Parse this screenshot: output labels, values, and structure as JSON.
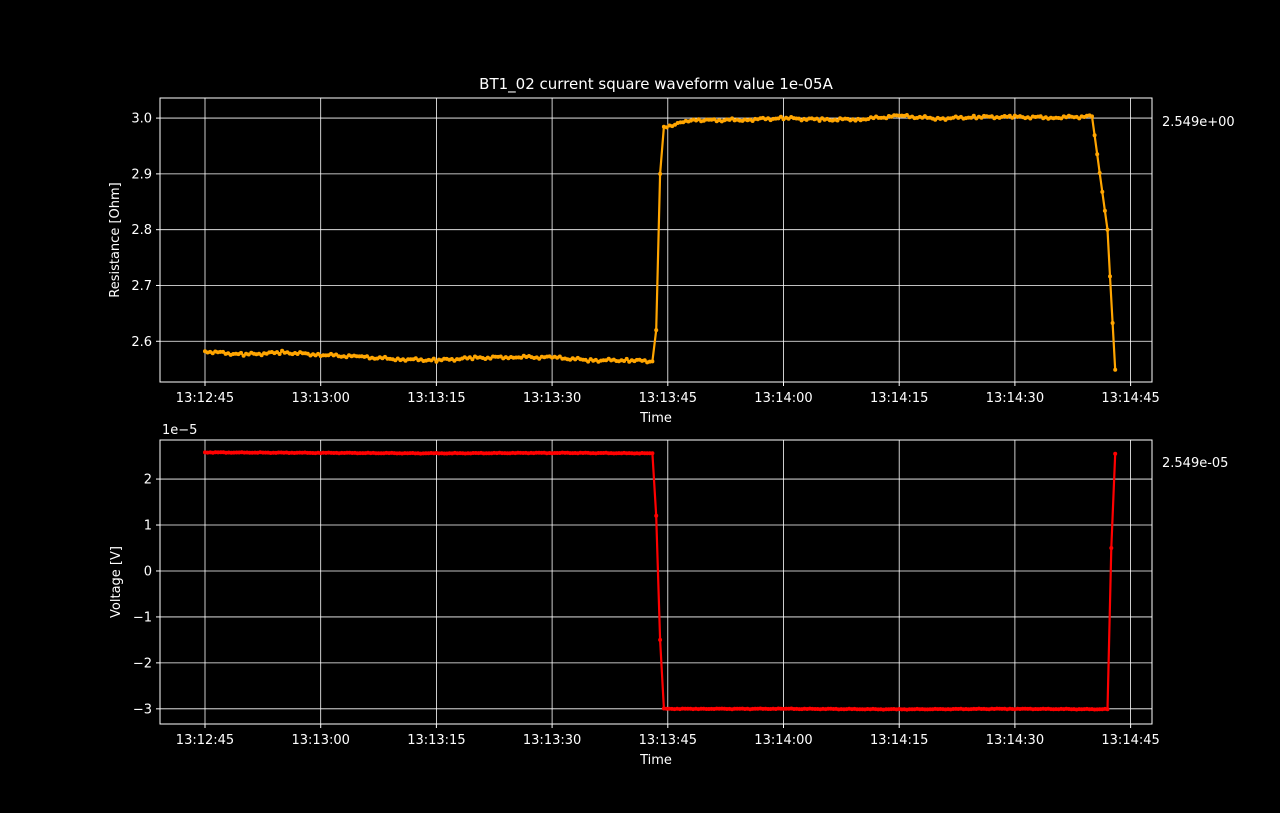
{
  "chart_data": [
    {
      "type": "line",
      "title": "BT1_02 current square waveform value 1e-05A",
      "xlabel": "Time",
      "ylabel": "Resistance [Ohm]",
      "side_label": "2.549e+00",
      "color": "#ffa500",
      "xticks": [
        "13:12:45",
        "13:13:00",
        "13:13:15",
        "13:13:30",
        "13:13:45",
        "13:14:00",
        "13:14:15",
        "13:14:30",
        "13:14:45"
      ],
      "yticks": [
        2.6,
        2.7,
        2.8,
        2.9,
        3.0
      ],
      "ytick_labels": [
        "2.6",
        "2.7",
        "2.8",
        "2.9",
        "3.0"
      ],
      "ylim": [
        2.527,
        3.036
      ],
      "grid": true,
      "series": [
        {
          "x": [
            "13:12:45",
            "13:12:50",
            "13:12:55",
            "13:13:00",
            "13:13:05",
            "13:13:10",
            "13:13:15",
            "13:13:20",
            "13:13:25",
            "13:13:30",
            "13:13:35",
            "13:13:40",
            "13:13:43",
            "13:13:43.5",
            "13:13:44",
            "13:13:44.5",
            "13:13:47",
            "13:13:50",
            "13:13:55",
            "13:14:00",
            "13:14:05",
            "13:14:10",
            "13:14:15",
            "13:14:20",
            "13:14:25",
            "13:14:30",
            "13:14:35",
            "13:14:40",
            "13:14:42",
            "13:14:43"
          ],
          "y": [
            2.582,
            2.576,
            2.58,
            2.576,
            2.572,
            2.568,
            2.566,
            2.57,
            2.572,
            2.571,
            2.566,
            2.566,
            2.564,
            2.62,
            2.9,
            2.982,
            2.995,
            2.996,
            2.997,
            3.0,
            2.997,
            2.998,
            3.004,
            2.999,
            3.002,
            3.002,
            3.001,
            3.003,
            2.8,
            2.549
          ]
        }
      ]
    },
    {
      "type": "line",
      "title": "",
      "xlabel": "Time",
      "ylabel": "Voltage [V]",
      "side_label": "2.549e-05",
      "offset_label": "1e−5",
      "color": "#ff0000",
      "xticks": [
        "13:12:45",
        "13:13:00",
        "13:13:15",
        "13:13:30",
        "13:13:45",
        "13:14:00",
        "13:14:15",
        "13:14:30",
        "13:14:45"
      ],
      "yticks": [
        -3,
        -2,
        -1,
        0,
        1,
        2
      ],
      "ytick_labels": [
        "−3",
        "−2",
        "−1",
        "0",
        "1",
        "2"
      ],
      "ylim": [
        -3.33,
        2.85
      ],
      "grid": true,
      "series": [
        {
          "x": [
            "13:12:45",
            "13:13:00",
            "13:13:15",
            "13:13:30",
            "13:13:43",
            "13:13:43.5",
            "13:13:44",
            "13:13:44.5",
            "13:13:50",
            "13:14:00",
            "13:14:15",
            "13:14:30",
            "13:14:42",
            "13:14:42.5",
            "13:14:43"
          ],
          "y": [
            2.58,
            2.57,
            2.56,
            2.57,
            2.56,
            1.2,
            -1.5,
            -3.0,
            -3.0,
            -3.0,
            -3.01,
            -3.0,
            -3.01,
            0.5,
            2.549
          ]
        }
      ]
    }
  ]
}
